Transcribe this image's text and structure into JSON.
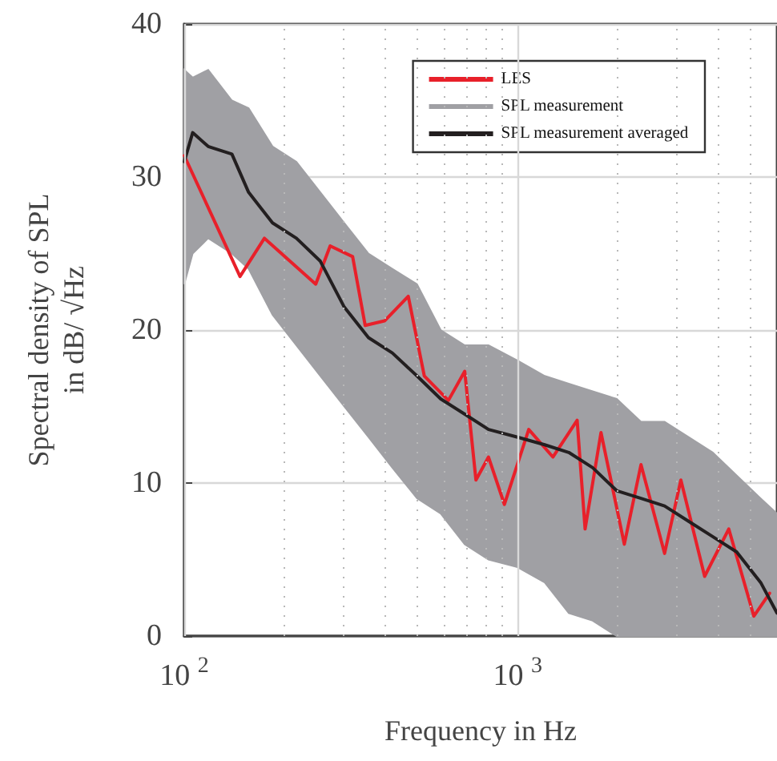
{
  "chart_data": {
    "type": "line",
    "xlabel": "Frequency in Hz",
    "ylabel": "Spectral density of SPL\nin dB/ √Hz",
    "log": "x",
    "grid": true,
    "legend": "top right",
    "line_style": "solid",
    "marker": "none",
    "xlim": [
      100,
      6000
    ],
    "xticks": [
      {
        "value": 100,
        "label": "10$^{2}$"
      },
      {
        "value": 1000,
        "label": "10$^{3}$"
      }
    ],
    "ylim": [
      0,
      40
    ],
    "yticks": [
      0,
      10,
      20,
      30,
      40
    ],
    "series": [
      {
        "name": "LES",
        "color": "#e8202a",
        "x": [
          100,
          147,
          174,
          248,
          274,
          320,
          349,
          399,
          470,
          525,
          620,
          694,
          750,
          818,
          913,
          1080,
          1276,
          1509,
          1594,
          1779,
          2090,
          2345,
          2760,
          3089,
          3640,
          4300,
          5114,
          5700
        ],
        "values": [
          31.4,
          23.5,
          26,
          23,
          25.5,
          24.8,
          20.3,
          20.6,
          22.2,
          17,
          15.4,
          17.3,
          10.2,
          11.7,
          8.6,
          13.5,
          11.7,
          14.1,
          7,
          13.3,
          6,
          11.2,
          5.4,
          10.2,
          3.9,
          7,
          1.3,
          2.8
        ]
      },
      {
        "name": "SPL measurement",
        "color": "#a0a0a4",
        "x": [
          100,
          106,
          118,
          139,
          156,
          184,
          217,
          256,
          302,
          357,
          421,
          499,
          588,
          694,
          818,
          1000,
          1206,
          1424,
          1680,
          1983,
          2345,
          2760,
          3258,
          3848,
          4540,
          5360,
          6000
        ],
        "values": [
          null,
          null,
          null,
          null,
          null,
          null,
          null,
          null,
          null,
          null,
          null,
          null,
          null,
          null,
          null,
          null,
          null,
          null,
          null,
          null,
          null,
          null,
          null,
          null,
          null,
          null,
          null
        ],
        "lower": [
          23,
          25,
          26,
          25,
          24,
          21,
          19,
          17,
          15,
          13,
          11,
          9,
          8,
          6,
          5,
          4.5,
          3.5,
          1.5,
          1,
          0,
          0,
          0,
          0,
          0,
          0,
          0,
          0
        ],
        "upper": [
          37,
          36.5,
          37,
          35,
          34.5,
          32,
          31,
          29,
          27,
          25,
          24,
          23,
          20,
          19,
          19,
          18,
          17,
          16.5,
          16,
          15.5,
          14,
          14,
          13,
          12,
          10.5,
          9,
          8
        ]
      },
      {
        "name": "SPL measurement averaged",
        "color": "#231f20",
        "x": [
          100,
          106,
          118,
          139,
          156,
          184,
          217,
          256,
          302,
          357,
          421,
          499,
          588,
          694,
          818,
          1000,
          1206,
          1424,
          1680,
          1983,
          2345,
          2760,
          3258,
          3848,
          4540,
          5360,
          6000
        ],
        "values": [
          31,
          32.9,
          32,
          31.5,
          29,
          27,
          26,
          24.5,
          21.5,
          19.5,
          18.5,
          17,
          15.5,
          14.5,
          13.5,
          13,
          12.5,
          12,
          11,
          9.5,
          9,
          8.5,
          7.5,
          6.5,
          5.5,
          3.5,
          1.5
        ]
      }
    ]
  }
}
